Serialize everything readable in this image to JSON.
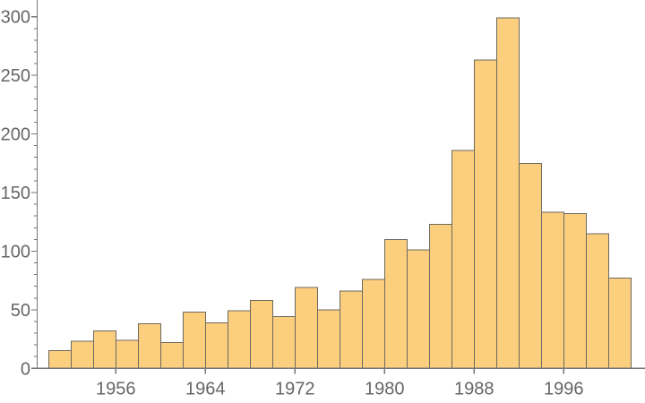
{
  "chart_data": {
    "type": "bar",
    "subtype": "histogram",
    "title": "",
    "xlabel": "",
    "ylabel": "",
    "bin_start": 1950,
    "bin_width": 2,
    "bin_edges": [
      1950,
      1952,
      1954,
      1956,
      1958,
      1960,
      1962,
      1964,
      1966,
      1968,
      1970,
      1972,
      1974,
      1976,
      1978,
      1980,
      1982,
      1984,
      1986,
      1988,
      1990,
      1992,
      1994,
      1996,
      1998,
      2000,
      2002
    ],
    "values": [
      15,
      23,
      32,
      24,
      38,
      22,
      48,
      39,
      49,
      58,
      44,
      69,
      50,
      66,
      76,
      110,
      101,
      123,
      186,
      263,
      299,
      175,
      133,
      132,
      115,
      77
    ],
    "x_tick_labels": [
      1956,
      1964,
      1972,
      1980,
      1988,
      1996
    ],
    "y_tick_labels": [
      0,
      50,
      100,
      150,
      200,
      250,
      300
    ],
    "y_minor_tick_step": 10,
    "xlim": [
      1949,
      2003.2
    ],
    "ylim": [
      0,
      300
    ],
    "grid": false,
    "legend": false,
    "colors": {
      "bar_fill": "#fccf7e",
      "bar_edge": "#6d6860",
      "axis": "#767676",
      "tick": "#767676",
      "label": "#666666",
      "background": "#ffffff"
    }
  }
}
